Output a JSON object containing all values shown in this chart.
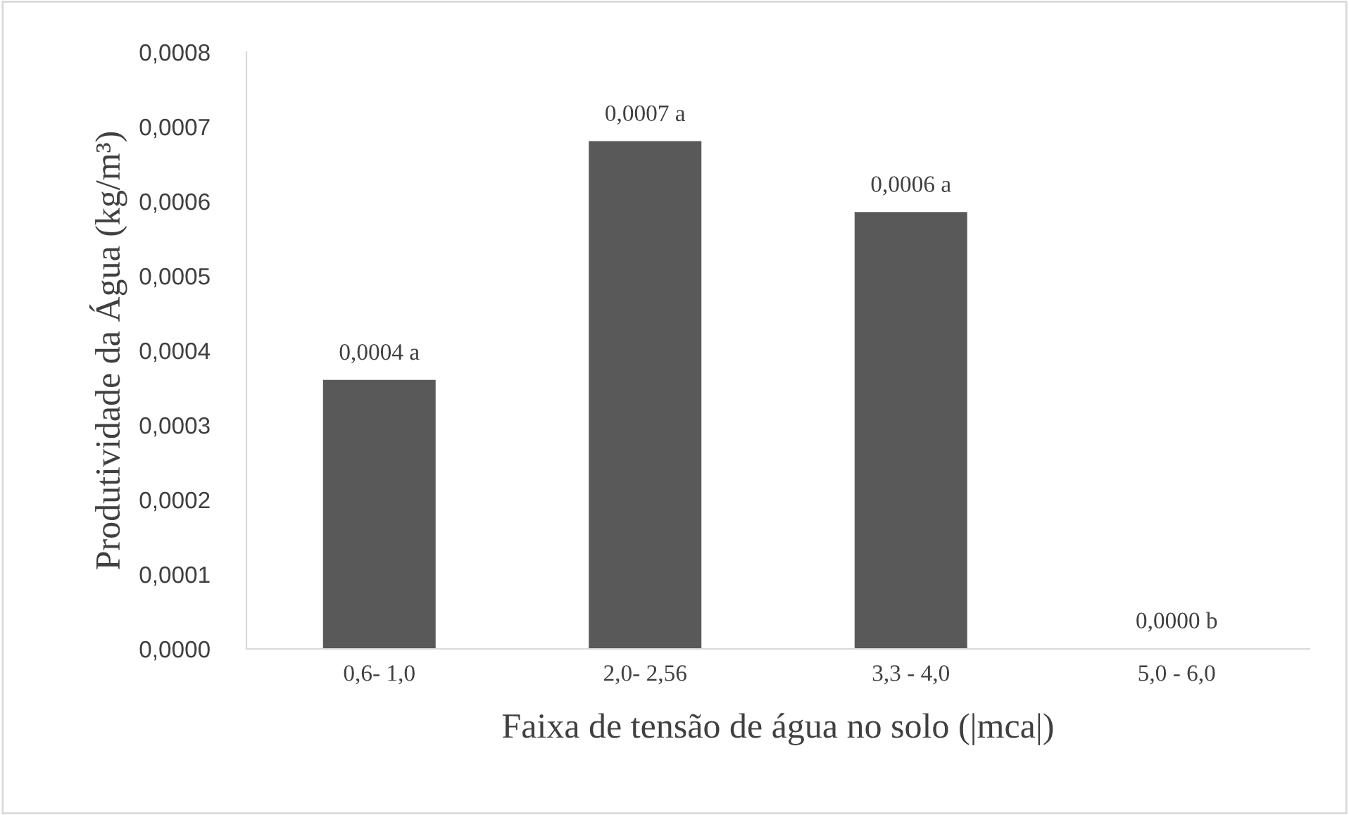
{
  "chart_data": {
    "type": "bar",
    "categories": [
      "0,6- 1,0",
      "2,0- 2,56",
      "3,3 - 4,0",
      "5,0 - 6,0"
    ],
    "values": [
      0.00036,
      0.00068,
      0.000585,
      0
    ],
    "value_labels": [
      "0,0004 a",
      "0,0007 a",
      "0,0006 a",
      "0,0000 b"
    ],
    "color": "#595959",
    "xlabel": "Faixa de tensão de água no solo (|mca|)",
    "ylabel": "Produtividade da Água (kg/m³)",
    "ylim": [
      0,
      0.0008
    ],
    "yticks": [
      {
        "value": 0,
        "label": "0,0000"
      },
      {
        "value": 0.0001,
        "label": "0,0001"
      },
      {
        "value": 0.0002,
        "label": "0,0002"
      },
      {
        "value": 0.0003,
        "label": "0,0003"
      },
      {
        "value": 0.0004,
        "label": "0,0004"
      },
      {
        "value": 0.0005,
        "label": "0,0005"
      },
      {
        "value": 0.0006,
        "label": "0,0006"
      },
      {
        "value": 0.0007,
        "label": "0,0007"
      },
      {
        "value": 0.0008,
        "label": "0,0008"
      }
    ],
    "grid": false
  }
}
